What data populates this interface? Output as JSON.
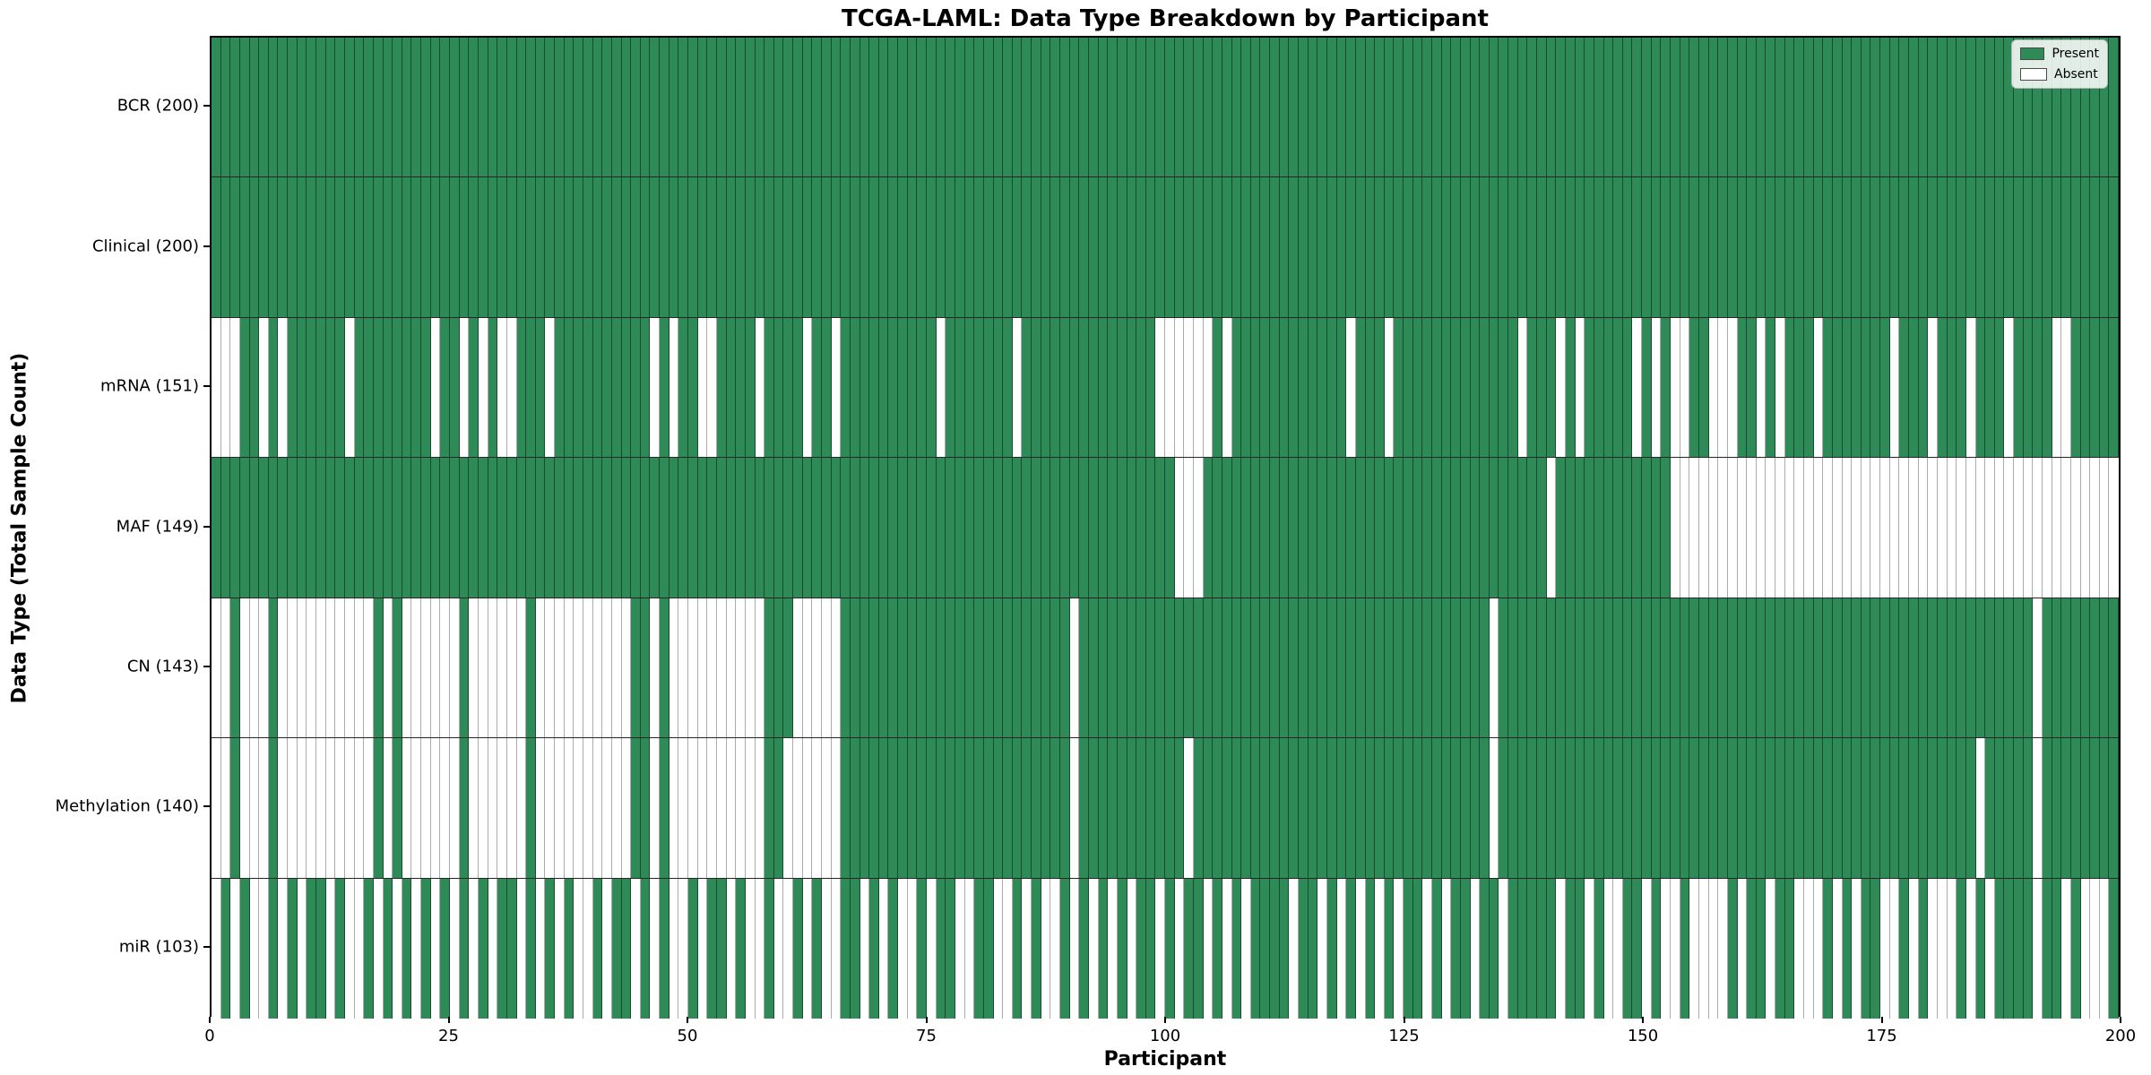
{
  "title": "TCGA-LAML: Data Type Breakdown by Participant",
  "xlabel": "Participant",
  "ylabel": "Data Type (Total Sample Count)",
  "legend": {
    "present_label": "Present",
    "absent_label": "Absent"
  },
  "colors": {
    "present": "#2e8b57",
    "absent": "#ffffff",
    "row_divider": "#000000",
    "frame": "#000000"
  },
  "x_ticks": [
    0,
    25,
    50,
    75,
    100,
    125,
    150,
    175,
    200
  ],
  "chart_data": {
    "type": "heatmap",
    "subtype": "presence-absence-matrix",
    "n_participants": 200,
    "x_range": [
      0,
      200
    ],
    "legend_position": "upper right",
    "value_encoding": {
      "present": 1,
      "absent": 0
    },
    "rows": [
      {
        "label": "BCR (200)",
        "name": "BCR",
        "total_present": 200,
        "absent_participants": []
      },
      {
        "label": "Clinical (200)",
        "name": "Clinical",
        "total_present": 200,
        "absent_participants": []
      },
      {
        "label": "mRNA (151)",
        "name": "mRNA",
        "total_present": 151,
        "absent_participants": [
          0,
          1,
          2,
          5,
          7,
          14,
          23,
          26,
          28,
          30,
          31,
          35,
          46,
          48,
          51,
          52,
          57,
          62,
          65,
          76,
          84,
          99,
          100,
          101,
          102,
          103,
          104,
          106,
          119,
          123,
          137,
          141,
          143,
          149,
          151,
          153,
          154,
          157,
          158,
          159,
          162,
          164,
          168,
          176,
          180,
          184,
          188,
          193,
          194
        ]
      },
      {
        "label": "MAF (149)",
        "name": "MAF",
        "total_present": 149,
        "absent_participants": [
          101,
          102,
          103,
          140,
          153,
          154,
          155,
          156,
          157,
          158,
          159,
          160,
          161,
          162,
          163,
          164,
          165,
          166,
          167,
          168,
          169,
          170,
          171,
          172,
          173,
          174,
          175,
          176,
          177,
          178,
          179,
          180,
          181,
          182,
          183,
          184,
          185,
          186,
          187,
          188,
          189,
          190,
          191,
          192,
          193,
          194,
          195,
          196,
          197,
          198,
          199
        ]
      },
      {
        "label": "CN (143)",
        "name": "CN",
        "total_present": 143,
        "absent_participants": [
          0,
          1,
          3,
          4,
          5,
          7,
          8,
          9,
          10,
          11,
          12,
          13,
          14,
          15,
          16,
          18,
          20,
          21,
          22,
          23,
          24,
          25,
          27,
          28,
          29,
          30,
          31,
          32,
          34,
          35,
          36,
          37,
          38,
          39,
          40,
          41,
          42,
          43,
          46,
          48,
          49,
          50,
          51,
          52,
          53,
          54,
          55,
          56,
          57,
          61,
          62,
          63,
          64,
          65,
          90,
          134,
          191
        ]
      },
      {
        "label": "Methylation (140)",
        "name": "Methylation",
        "total_present": 140,
        "absent_participants": [
          0,
          1,
          3,
          4,
          5,
          7,
          8,
          9,
          10,
          11,
          12,
          13,
          14,
          15,
          16,
          18,
          20,
          21,
          22,
          23,
          24,
          25,
          27,
          28,
          29,
          30,
          31,
          32,
          34,
          35,
          36,
          37,
          38,
          39,
          40,
          41,
          42,
          43,
          46,
          48,
          49,
          50,
          51,
          52,
          53,
          54,
          55,
          56,
          57,
          60,
          61,
          62,
          63,
          64,
          65,
          90,
          102,
          134,
          185,
          191
        ]
      },
      {
        "label": "miR (103)",
        "name": "miR",
        "total_present": 103,
        "absent_participants": [
          0,
          2,
          4,
          5,
          7,
          9,
          12,
          14,
          15,
          17,
          19,
          21,
          23,
          25,
          27,
          29,
          32,
          34,
          36,
          38,
          39,
          41,
          44,
          46,
          48,
          49,
          51,
          54,
          56,
          57,
          59,
          60,
          62,
          64,
          65,
          68,
          70,
          72,
          73,
          75,
          78,
          79,
          82,
          83,
          85,
          87,
          88,
          90,
          92,
          94,
          96,
          99,
          101,
          104,
          106,
          108,
          113,
          116,
          118,
          120,
          122,
          124,
          127,
          129,
          132,
          135,
          141,
          144,
          146,
          147,
          150,
          152,
          153,
          155,
          156,
          157,
          158,
          160,
          163,
          166,
          167,
          168,
          170,
          172,
          175,
          176,
          178,
          180,
          181,
          182,
          184,
          186,
          191,
          194,
          196,
          197,
          198
        ]
      }
    ]
  }
}
